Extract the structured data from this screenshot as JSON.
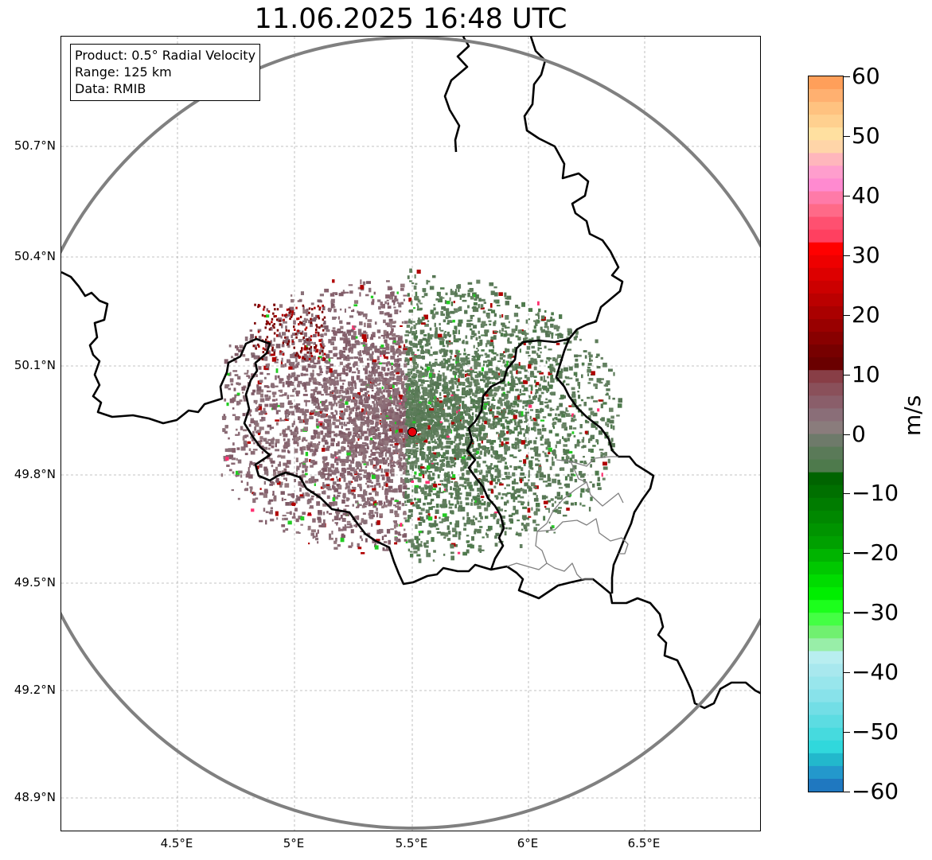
{
  "title": "11.06.2025 16:48 UTC",
  "info": {
    "product": "Product: 0.5° Radial Velocity",
    "range": "Range: 125 km",
    "data": "Data: RMIB"
  },
  "axes": {
    "lat_ticks": [
      "50.7°N",
      "50.4°N",
      "50.1°N",
      "49.8°N",
      "49.5°N",
      "49.2°N",
      "48.9°N"
    ],
    "lon_ticks": [
      "4.5°E",
      "5°E",
      "5.5°E",
      "6°E",
      "6.5°E"
    ]
  },
  "colorbar": {
    "unit": "m/s",
    "ticks": [
      "60",
      "50",
      "40",
      "30",
      "20",
      "10",
      "0",
      "−10",
      "−20",
      "−30",
      "−40",
      "−50",
      "−60"
    ],
    "min": -60,
    "max": 60,
    "colors": [
      "#ff9f5a",
      "#ffb070",
      "#ffc280",
      "#ffd08f",
      "#ffe0a0",
      "#ffd5a8",
      "#ffb6bc",
      "#ff9ecd",
      "#ff8ad0",
      "#ff7aa8",
      "#ff6a88",
      "#ff5070",
      "#ff4060",
      "#ff0000",
      "#ee0000",
      "#dd0000",
      "#cc0000",
      "#bb0000",
      "#aa0000",
      "#990000",
      "#880000",
      "#770000",
      "#6a0000",
      "#883e46",
      "#8a505a",
      "#8a5e6a",
      "#8a6e78",
      "#8a7c7c",
      "#6e7a6a",
      "#5a7a58",
      "#4e7a4c",
      "#006400",
      "#007000",
      "#007c00",
      "#008800",
      "#009400",
      "#00a000",
      "#00b400",
      "#00c800",
      "#00dc00",
      "#00ee00",
      "#1cff1c",
      "#44ff44",
      "#70f070",
      "#98eea8",
      "#b8eef0",
      "#a8e8ee",
      "#98e6ec",
      "#88e2ea",
      "#72dee6",
      "#5cdce2",
      "#46dade",
      "#30d8dc",
      "#22b8cc",
      "#2398cc",
      "#1f78c0"
    ]
  },
  "radar_site_color": "#e8000b",
  "range_ring_color": "#808080"
}
